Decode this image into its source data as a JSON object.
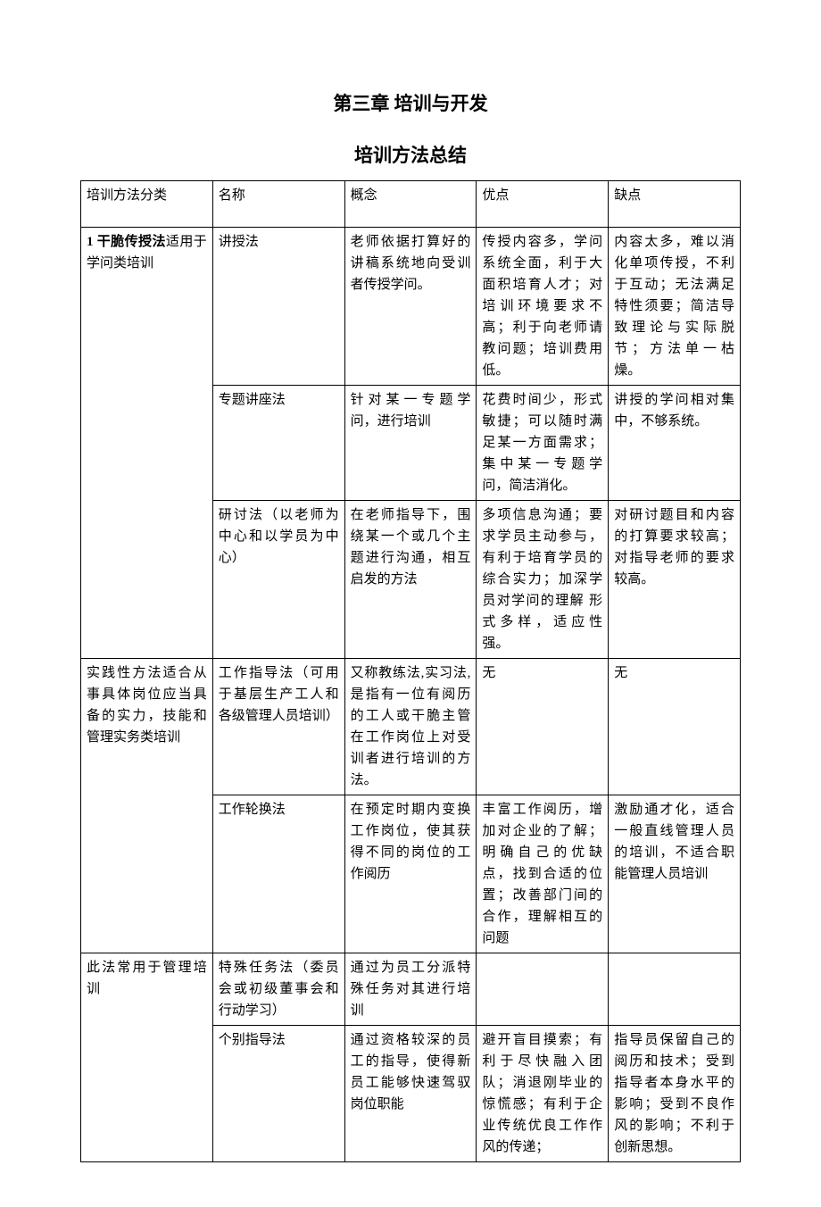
{
  "document": {
    "chapter_title": "第三章 培训与开发",
    "sub_title": "培训方法总结",
    "headers": {
      "col1": "培训方法分类",
      "col2": "名称",
      "col3": "概念",
      "col4": "优点",
      "col5": "缺点"
    },
    "category1": {
      "label_bold": "1 干脆传授法",
      "label_rest": "适用于学问类培训",
      "row1": {
        "name": "讲授法",
        "concept": "老师依据打算好的讲稿系统地向受训者传授学问。",
        "pros": "传授内容多，学问系统全面，利于大面积培育人才；对培训环境要求不高；利于向老师请教问题；培训费用低。",
        "cons": "内容太多，难以消化单项传授，不利于互动；无法满足特性须要；简洁导致理论与实际脱节；方法单一枯燥。"
      },
      "row2": {
        "name": "专题讲座法",
        "concept": "针对某一专题学问，进行培训",
        "pros": "花费时间少，形式敏捷；可以随时满足某一方面需求；集中某一专题学问，简洁消化。",
        "cons": "讲授的学问相对集中，不够系统。"
      },
      "row3": {
        "name": "研讨法（以老师为中心和以学员为中心）",
        "concept": "在老师指导下，围绕某一个或几个主题进行沟通，相互启发的方法",
        "pros": "多项信息沟通；要求学员主动参与，有利于培育学员的综合实力；加深学员对学问的理解 形式多样，适应性强。",
        "cons": "对研讨题目和内容的打算要求较高；对指导老师的要求较高。"
      }
    },
    "category2": {
      "label": "实践性方法适合从事具体岗位应当具备的实力，技能和管理实务类培训",
      "row1": {
        "name": "工作指导法（可用于基层生产工人和各级管理人员培训）",
        "concept": "又称教练法,实习法,是指有一位有阅历的工人或干脆主管在工作岗位上对受训者进行培训的方法。",
        "pros": "无",
        "cons": "无"
      },
      "row2": {
        "name": "工作轮换法",
        "concept": "在预定时期内变换工作岗位，使其获得不同的岗位的工作阅历",
        "pros": "丰富工作阅历，增加对企业的了解；明确自己的优缺点，找到合适的位置；改善部门间的合作，理解相互的问题",
        "cons": "激励通才化，适合一般直线管理人员的培训，不适合职能管理人员培训"
      }
    },
    "category3": {
      "label": "此法常用于管理培训",
      "row1": {
        "name": "特殊任务法（委员会或初级董事会和行动学习）",
        "concept": "通过为员工分派特殊任务对其进行培训",
        "pros": "",
        "cons": ""
      },
      "row2": {
        "name": "个别指导法",
        "concept": "通过资格较深的员工的指导，使得新员工能够快速驾驭岗位职能",
        "pros": "避开盲目摸索；有利于尽快融入团队；消退刚毕业的惊慌感；有利于企业传统优良工作作风的传递；",
        "cons": "指导员保留自己的阅历和技术；受到指导者本身水平的影响；受到不良作风的影响；不利于创新思想。"
      }
    }
  }
}
